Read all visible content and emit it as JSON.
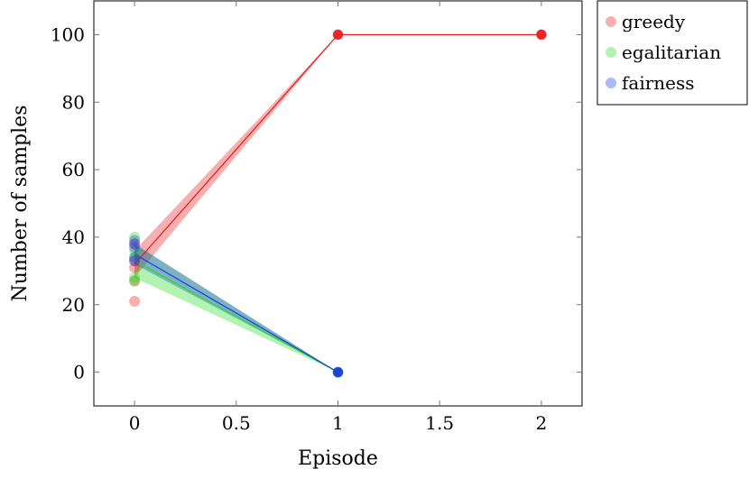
{
  "chart_data": {
    "type": "line",
    "title": "",
    "xlabel": "Episode",
    "ylabel": "Number of samples",
    "xlim": [
      -0.2,
      2.2
    ],
    "ylim": [
      -10,
      110
    ],
    "xticks": [
      0,
      0.5,
      1,
      1.5,
      2
    ],
    "xtick_labels": [
      "0",
      "0.5",
      "1",
      "1.5",
      "2"
    ],
    "yticks": [
      0,
      20,
      40,
      60,
      80,
      100
    ],
    "ytick_labels": [
      "0",
      "20",
      "40",
      "60",
      "80",
      "100"
    ],
    "legend_position": "outside-top-right",
    "grid": false,
    "series": [
      {
        "name": "greedy",
        "color": "#e8191a",
        "mean": [
          {
            "x": 0,
            "y": 32
          },
          {
            "x": 1,
            "y": 100
          },
          {
            "x": 2,
            "y": 100
          }
        ],
        "band": [
          {
            "x": 0,
            "lo": 28,
            "hi": 36
          },
          {
            "x": 1,
            "lo": 100,
            "hi": 100
          },
          {
            "x": 2,
            "lo": 100,
            "hi": 100
          }
        ],
        "points": [
          {
            "x": 0,
            "y": 21
          },
          {
            "x": 0,
            "y": 27
          },
          {
            "x": 0,
            "y": 31
          },
          {
            "x": 0,
            "y": 33
          },
          {
            "x": 0,
            "y": 38
          },
          {
            "x": 1,
            "y": 100
          },
          {
            "x": 2,
            "y": 100
          }
        ]
      },
      {
        "name": "egalitarian",
        "color": "#22dd22",
        "mean": [
          {
            "x": 0,
            "y": 33
          },
          {
            "x": 1,
            "y": 0
          }
        ],
        "band": [
          {
            "x": 0,
            "lo": 28,
            "hi": 38
          },
          {
            "x": 1,
            "lo": 0,
            "hi": 0
          }
        ],
        "points": [
          {
            "x": 0,
            "y": 27
          },
          {
            "x": 0,
            "y": 28
          },
          {
            "x": 0,
            "y": 34
          },
          {
            "x": 0,
            "y": 36
          },
          {
            "x": 0,
            "y": 40
          },
          {
            "x": 1,
            "y": 0
          }
        ]
      },
      {
        "name": "fairness",
        "color": "#1a3ae0",
        "mean": [
          {
            "x": 0,
            "y": 35
          },
          {
            "x": 1,
            "y": 0
          }
        ],
        "band": [
          {
            "x": 0,
            "lo": 32,
            "hi": 38
          },
          {
            "x": 1,
            "lo": 0,
            "hi": 0
          }
        ],
        "points": [
          {
            "x": 0,
            "y": 33
          },
          {
            "x": 0,
            "y": 34
          },
          {
            "x": 0,
            "y": 37
          },
          {
            "x": 0,
            "y": 38
          },
          {
            "x": 0,
            "y": 39
          },
          {
            "x": 1,
            "y": 0
          }
        ]
      }
    ]
  }
}
